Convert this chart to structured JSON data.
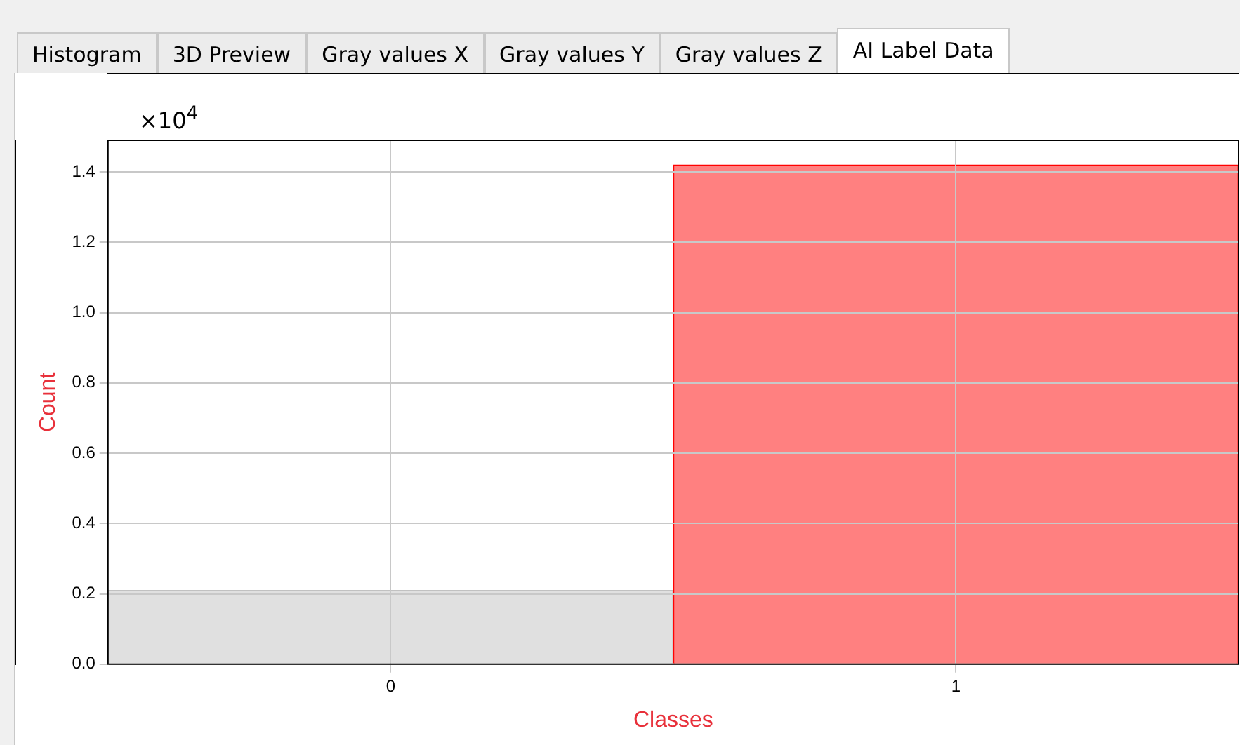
{
  "chart_data": {
    "type": "bar",
    "xlabel": "Classes",
    "ylabel": "Count",
    "categories": [
      "0",
      "1"
    ],
    "values": [
      0.21,
      1.42
    ],
    "colors": [
      "#e0e0e0",
      "#ff8080"
    ],
    "ylim": [
      0,
      1.49
    ],
    "yticks": [
      {
        "value": 0,
        "label": "0.0"
      },
      0.2,
      0.4,
      0.6,
      0.8,
      {
        "value": 1,
        "label": "1.0"
      },
      1.2,
      1.4
    ],
    "grid": true,
    "legend": false,
    "annotations": [
      "×10$^{4}$",
      "Histogram",
      "3D Preview",
      "Gray values X",
      "Gray values Y",
      "Gray values Z",
      "AI Label Data"
    ]
  }
}
